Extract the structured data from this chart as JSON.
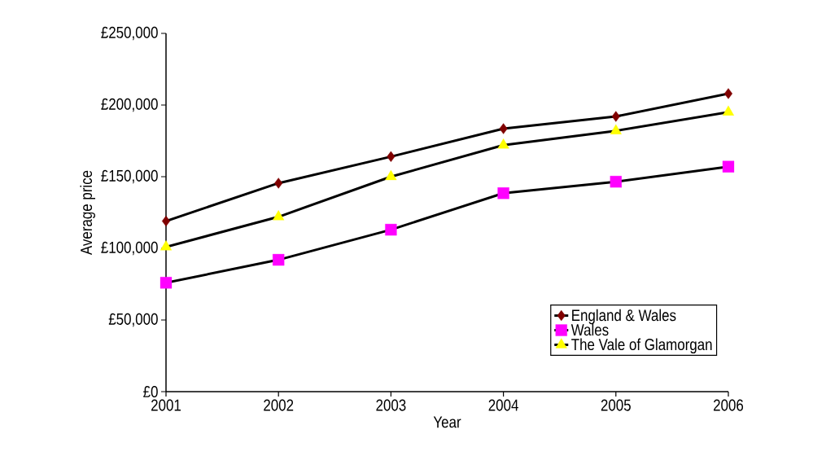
{
  "chart_data": {
    "type": "line",
    "xlabel": "Year",
    "ylabel": "Average price",
    "categories": [
      "2001",
      "2002",
      "2003",
      "2004",
      "2005",
      "2006"
    ],
    "series": [
      {
        "name": "England & Wales",
        "color": "#800000",
        "marker": "diamond",
        "values": [
          119000,
          145500,
          164000,
          183500,
          192000,
          208000
        ]
      },
      {
        "name": "Wales",
        "color": "#ff00ff",
        "marker": "square",
        "values": [
          76000,
          92000,
          113000,
          138500,
          146500,
          157000
        ]
      },
      {
        "name": "The Vale of Glamorgan",
        "color": "#ffff00",
        "marker": "triangle",
        "values": [
          101000,
          122000,
          150000,
          172000,
          182000,
          195000
        ]
      }
    ],
    "ylim": [
      0,
      250000
    ],
    "yticks": [
      {
        "value": 0,
        "label": "£0"
      },
      {
        "value": 50000,
        "label": "£50,000"
      },
      {
        "value": 100000,
        "label": "£100,000"
      },
      {
        "value": 150000,
        "label": "£150,000"
      },
      {
        "value": 200000,
        "label": "£200,000"
      },
      {
        "value": 250000,
        "label": "£250,000"
      }
    ],
    "grid": false,
    "legend": "bottom right",
    "line_style": "solid"
  }
}
